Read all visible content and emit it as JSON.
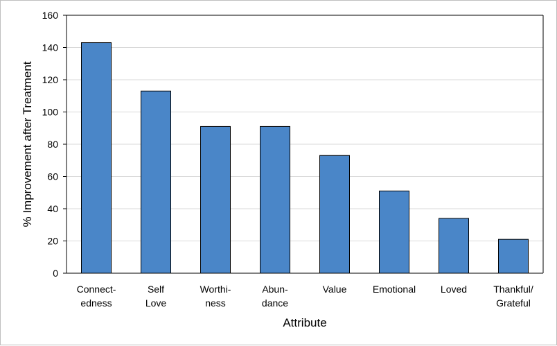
{
  "chart_data": {
    "type": "bar",
    "xlabel": "Attribute",
    "ylabel": "% Improvement after Treatment",
    "ylim": [
      0,
      160
    ],
    "yticks": [
      0,
      20,
      40,
      60,
      80,
      100,
      120,
      140,
      160
    ],
    "grid": true,
    "legend": "none",
    "categories": [
      [
        "Connect-",
        "edness"
      ],
      [
        "Self",
        "Love"
      ],
      [
        "Worthi-",
        "ness"
      ],
      [
        "Abun-",
        "dance"
      ],
      [
        "Value"
      ],
      [
        "Emotional"
      ],
      [
        "Loved"
      ],
      [
        "Thankful/",
        "Grateful"
      ]
    ],
    "values": [
      143,
      113,
      91,
      91,
      73,
      51,
      34,
      21
    ],
    "colors": {
      "bar_fill": "#4a86c8",
      "bar_stroke": "#000000",
      "grid": "#d9d9d9",
      "axis": "#000000"
    }
  }
}
